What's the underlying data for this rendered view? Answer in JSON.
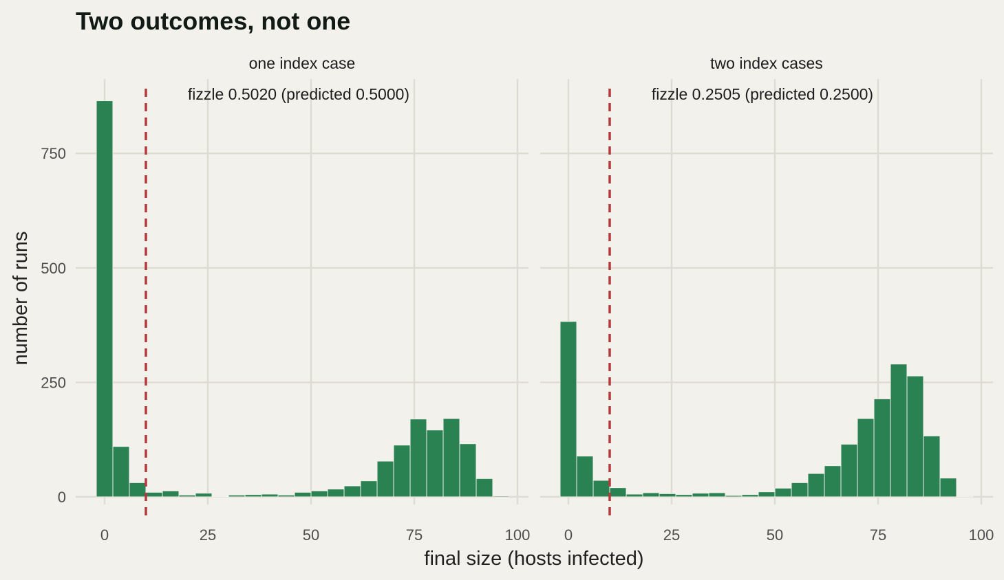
{
  "colors": {
    "background": "#f2f1eb",
    "bar": "#2a8152",
    "threshold": "#b23a3a",
    "grid": "#dedcd2"
  },
  "chart_data": {
    "type": "bar",
    "title": "Two outcomes, not one",
    "xlabel": "final size (hosts infected)",
    "ylabel": "number of runs",
    "x_ticks": [
      0,
      25,
      50,
      75,
      100
    ],
    "y_ticks": [
      0,
      250,
      500,
      750
    ],
    "xlim": [
      -6,
      102
    ],
    "ylim": [
      -4,
      900
    ],
    "grid": true,
    "bin_width": 4,
    "threshold_x": 10,
    "panels": [
      {
        "label": "one index case",
        "annotation": "fizzle 0.5020 (predicted 0.5000)",
        "bins": [
          {
            "x": 0,
            "count": 865
          },
          {
            "x": 4,
            "count": 110
          },
          {
            "x": 8,
            "count": 31
          },
          {
            "x": 12,
            "count": 10
          },
          {
            "x": 16,
            "count": 13
          },
          {
            "x": 20,
            "count": 4
          },
          {
            "x": 24,
            "count": 8
          },
          {
            "x": 28,
            "count": 1
          },
          {
            "x": 32,
            "count": 4
          },
          {
            "x": 36,
            "count": 5
          },
          {
            "x": 40,
            "count": 6
          },
          {
            "x": 44,
            "count": 4
          },
          {
            "x": 48,
            "count": 10
          },
          {
            "x": 52,
            "count": 13
          },
          {
            "x": 56,
            "count": 17
          },
          {
            "x": 60,
            "count": 24
          },
          {
            "x": 64,
            "count": 35
          },
          {
            "x": 68,
            "count": 78
          },
          {
            "x": 72,
            "count": 113
          },
          {
            "x": 76,
            "count": 170
          },
          {
            "x": 80,
            "count": 146
          },
          {
            "x": 84,
            "count": 171
          },
          {
            "x": 88,
            "count": 116
          },
          {
            "x": 92,
            "count": 40
          },
          {
            "x": 96,
            "count": 2
          }
        ]
      },
      {
        "label": "two index cases",
        "annotation": "fizzle 0.2505 (predicted 0.2500)",
        "bins": [
          {
            "x": 0,
            "count": 383
          },
          {
            "x": 4,
            "count": 89
          },
          {
            "x": 8,
            "count": 36
          },
          {
            "x": 12,
            "count": 20
          },
          {
            "x": 16,
            "count": 6
          },
          {
            "x": 20,
            "count": 9
          },
          {
            "x": 24,
            "count": 7
          },
          {
            "x": 28,
            "count": 5
          },
          {
            "x": 32,
            "count": 8
          },
          {
            "x": 36,
            "count": 9
          },
          {
            "x": 40,
            "count": 3
          },
          {
            "x": 44,
            "count": 5
          },
          {
            "x": 48,
            "count": 11
          },
          {
            "x": 52,
            "count": 19
          },
          {
            "x": 56,
            "count": 31
          },
          {
            "x": 60,
            "count": 51
          },
          {
            "x": 64,
            "count": 68
          },
          {
            "x": 68,
            "count": 115
          },
          {
            "x": 72,
            "count": 171
          },
          {
            "x": 76,
            "count": 214
          },
          {
            "x": 80,
            "count": 290
          },
          {
            "x": 84,
            "count": 264
          },
          {
            "x": 88,
            "count": 133
          },
          {
            "x": 92,
            "count": 41
          },
          {
            "x": 96,
            "count": 1
          }
        ]
      }
    ]
  }
}
